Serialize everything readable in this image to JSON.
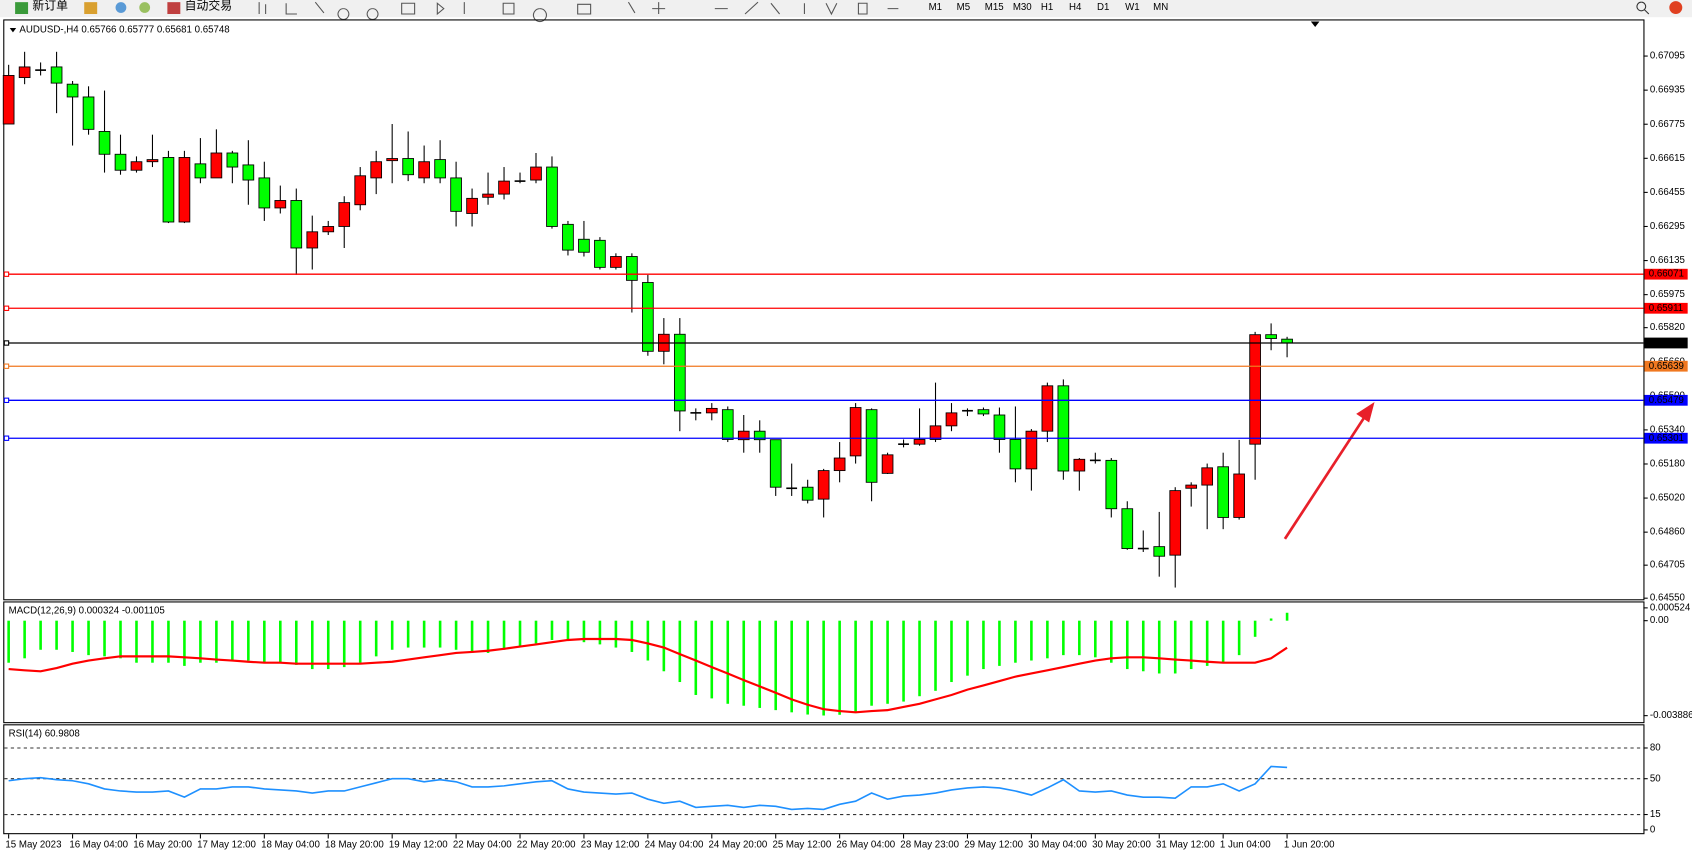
{
  "toolbar": {
    "new_order": "新订单",
    "auto_trading": "自动交易",
    "timeframes": [
      "M1",
      "M5",
      "M15",
      "M30",
      "H1",
      "H4",
      "D1",
      "W1",
      "MN"
    ]
  },
  "chart_data": [
    {
      "type": "candlestick",
      "title": "AUDUSD-,H4  0.65766 0.65777 0.65681 0.65748",
      "colors": {
        "up": "#ff0000",
        "down": "#00ff00"
      },
      "categories": [
        "15 May 2023",
        null,
        null,
        null,
        "16 May 04:00",
        null,
        null,
        null,
        "16 May 20:00",
        null,
        null,
        null,
        "17 May 12:00",
        null,
        null,
        null,
        "18 May 04:00",
        null,
        null,
        null,
        "18 May 20:00",
        null,
        null,
        null,
        "19 May 12:00",
        null,
        null,
        null,
        "22 May 04:00",
        null,
        null,
        null,
        "22 May 20:00",
        null,
        null,
        null,
        "23 May 12:00",
        null,
        null,
        null,
        "24 May 04:00",
        null,
        null,
        null,
        "24 May 20:00",
        null,
        null,
        null,
        "25 May 12:00",
        null,
        null,
        null,
        "26 May 04:00",
        null,
        null,
        null,
        "28 May 23:00",
        null,
        null,
        null,
        "29 May 12:00",
        null,
        null,
        null,
        "30 May 04:00",
        null,
        null,
        null,
        "30 May 20:00",
        null,
        null,
        null,
        "31 May 12:00",
        null,
        null,
        null,
        "1 Jun 04:00",
        null,
        null,
        null,
        "1 Jun 20:00"
      ],
      "ohlc": [
        [
          0.66776,
          0.67054,
          0.66776,
          0.67004
        ],
        [
          0.66994,
          0.67115,
          0.66963,
          0.67044
        ],
        [
          0.67029,
          0.67065,
          0.67004,
          0.67029
        ],
        [
          0.67044,
          0.67115,
          0.66827,
          0.66968
        ],
        [
          0.66963,
          0.66978,
          0.66675,
          0.66903
        ],
        [
          0.66903,
          0.66953,
          0.66726,
          0.66751
        ],
        [
          0.66741,
          0.66933,
          0.66548,
          0.66634
        ],
        [
          0.66634,
          0.66726,
          0.66538,
          0.66559
        ],
        [
          0.66559,
          0.66624,
          0.66548,
          0.66599
        ],
        [
          0.66599,
          0.66726,
          0.66574,
          0.66609
        ],
        [
          0.66619,
          0.6665,
          0.66311,
          0.66316
        ],
        [
          0.66316,
          0.6665,
          0.66311,
          0.66619
        ],
        [
          0.66589,
          0.6671,
          0.66498,
          0.66523
        ],
        [
          0.66523,
          0.66751,
          0.66523,
          0.6664
        ],
        [
          0.6664,
          0.6665,
          0.66498,
          0.66574
        ],
        [
          0.66584,
          0.667,
          0.66397,
          0.66513
        ],
        [
          0.66523,
          0.66599,
          0.66321,
          0.66382
        ],
        [
          0.66382,
          0.66487,
          0.66356,
          0.66417
        ],
        [
          0.66417,
          0.66473,
          0.66068,
          0.66194
        ],
        [
          0.66194,
          0.66346,
          0.66093,
          0.6627
        ],
        [
          0.6627,
          0.66321,
          0.66255,
          0.66295
        ],
        [
          0.66295,
          0.66437,
          0.66194,
          0.66407
        ],
        [
          0.66397,
          0.66574,
          0.66371,
          0.66533
        ],
        [
          0.66523,
          0.6665,
          0.66447,
          0.66599
        ],
        [
          0.66604,
          0.66776,
          0.66498,
          0.66614
        ],
        [
          0.66614,
          0.66741,
          0.66508,
          0.66538
        ],
        [
          0.66523,
          0.66675,
          0.66498,
          0.66599
        ],
        [
          0.66609,
          0.667,
          0.66498,
          0.66523
        ],
        [
          0.66523,
          0.66599,
          0.66295,
          0.66366
        ],
        [
          0.66356,
          0.66473,
          0.66295,
          0.66427
        ],
        [
          0.66432,
          0.66548,
          0.66397,
          0.66447
        ],
        [
          0.66447,
          0.66574,
          0.66422,
          0.66508
        ],
        [
          0.66508,
          0.66548,
          0.66498,
          0.66508
        ],
        [
          0.66513,
          0.6664,
          0.66498,
          0.66574
        ],
        [
          0.66574,
          0.66624,
          0.66285,
          0.66295
        ],
        [
          0.66305,
          0.66321,
          0.66159,
          0.66184
        ],
        [
          0.66235,
          0.66321,
          0.66154,
          0.66174
        ],
        [
          0.6623,
          0.66245,
          0.66093,
          0.66103
        ],
        [
          0.66103,
          0.66169,
          0.66093,
          0.66154
        ],
        [
          0.66154,
          0.66169,
          0.65891,
          0.66042
        ],
        [
          0.66032,
          0.66068,
          0.65688,
          0.65709
        ],
        [
          0.65709,
          0.65865,
          0.65648,
          0.65789
        ],
        [
          0.65789,
          0.65865,
          0.65334,
          0.65429
        ],
        [
          0.6542,
          0.65441,
          0.65385,
          0.6542
        ],
        [
          0.6542,
          0.65466,
          0.65385,
          0.65441
        ],
        [
          0.65435,
          0.6545,
          0.65283,
          0.65295
        ],
        [
          0.65294,
          0.6541,
          0.65233,
          0.65334
        ],
        [
          0.65334,
          0.65385,
          0.65233,
          0.65294
        ],
        [
          0.65294,
          0.65295,
          0.6503,
          0.65071
        ],
        [
          0.65066,
          0.65182,
          0.6503,
          0.65066
        ],
        [
          0.65071,
          0.65106,
          0.64995,
          0.6501
        ],
        [
          0.65015,
          0.65157,
          0.64929,
          0.65149
        ],
        [
          0.65149,
          0.65283,
          0.65094,
          0.65208
        ],
        [
          0.65218,
          0.65466,
          0.65182,
          0.65445
        ],
        [
          0.65435,
          0.65441,
          0.65005,
          0.65094
        ],
        [
          0.65136,
          0.65233,
          0.65133,
          0.65223
        ],
        [
          0.65273,
          0.65295,
          0.65258,
          0.65273
        ],
        [
          0.65273,
          0.65441,
          0.65266,
          0.65295
        ],
        [
          0.65295,
          0.65562,
          0.65283,
          0.65359
        ],
        [
          0.65359,
          0.65466,
          0.65334,
          0.6542
        ],
        [
          0.6543,
          0.65441,
          0.65405,
          0.6543
        ],
        [
          0.65435,
          0.65445,
          0.65405,
          0.65415
        ],
        [
          0.6541,
          0.65445,
          0.65233,
          0.65295
        ],
        [
          0.65295,
          0.6545,
          0.65094,
          0.65157
        ],
        [
          0.65157,
          0.65344,
          0.65055,
          0.65334
        ],
        [
          0.65334,
          0.65562,
          0.65283,
          0.65547
        ],
        [
          0.65547,
          0.65577,
          0.65106,
          0.65147
        ],
        [
          0.65147,
          0.65208,
          0.65055,
          0.65202
        ],
        [
          0.65197,
          0.65233,
          0.65182,
          0.65197
        ],
        [
          0.65197,
          0.65208,
          0.64929,
          0.6497
        ],
        [
          0.6497,
          0.65005,
          0.64777,
          0.64783
        ],
        [
          0.64783,
          0.64868,
          0.64767,
          0.64783
        ],
        [
          0.64792,
          0.64955,
          0.64651,
          0.64747
        ],
        [
          0.64752,
          0.65071,
          0.646,
          0.65055
        ],
        [
          0.65066,
          0.65094,
          0.6498,
          0.65081
        ],
        [
          0.65081,
          0.65182,
          0.64874,
          0.65162
        ],
        [
          0.65167,
          0.65233,
          0.64874,
          0.64929
        ],
        [
          0.64929,
          0.65293,
          0.64919,
          0.65133
        ],
        [
          0.65273,
          0.658,
          0.65106,
          0.65787
        ],
        [
          0.65787,
          0.6584,
          0.65714,
          0.65769
        ],
        [
          0.65766,
          0.65777,
          0.65681,
          0.65748
        ]
      ],
      "ylim": [
        0.64545,
        0.67257
      ],
      "yticks": [
        0.67095,
        0.66935,
        0.66775,
        0.66615,
        0.66455,
        0.66295,
        0.66135,
        0.65975,
        {
          "value": 0.6582,
          "label": "0.65820"
        },
        {
          "value": 0.6566,
          "label": "0.65660"
        },
        {
          "value": 0.655,
          "label": "0.65500"
        },
        {
          "value": 0.6534,
          "label": "0.65340"
        },
        {
          "value": 0.6518,
          "label": "0.65180"
        },
        {
          "value": 0.6502,
          "label": "0.65020"
        },
        {
          "value": 0.6486,
          "label": "0.64860"
        },
        0.64705,
        {
          "value": 0.6455,
          "label": "0.64550"
        }
      ],
      "levels": [
        {
          "value": 0.66071,
          "color": "#ff0000"
        },
        {
          "value": 0.65911,
          "color": "#ff0000"
        },
        {
          "value": 0.65748,
          "color": "#000000"
        },
        {
          "value": 0.65639,
          "color": "#f07820"
        },
        {
          "value": 0.65479,
          "color": "#0000ff"
        },
        {
          "value": 0.65301,
          "color": "#0000ff"
        }
      ]
    },
    {
      "type": "macd",
      "title": "MACD(12,26,9) 0.000324 -0.001105",
      "series": [
        {
          "color": "#00ff00",
          "values": [
            -0.00172,
            -0.00154,
            -0.00119,
            -0.00119,
            -0.00128,
            -0.00141,
            -0.00146,
            -0.00154,
            -0.00172,
            -0.00172,
            -0.00172,
            -0.00185,
            -0.00172,
            -0.00172,
            -0.00163,
            -0.00163,
            -0.00172,
            -0.00172,
            -0.00181,
            -0.00198,
            -0.00198,
            -0.0019,
            -0.00172,
            -0.00146,
            -0.00119,
            -0.0011,
            -0.0011,
            -0.0011,
            -0.00119,
            -0.00132,
            -0.00132,
            -0.00119,
            -0.00106,
            -0.00093,
            -0.00079,
            -0.00075,
            -0.00088,
            -0.00097,
            -0.0011,
            -0.00128,
            -0.00163,
            -0.00207,
            -0.00251,
            -0.00304,
            -0.00318,
            -0.0034,
            -0.00348,
            -0.00357,
            -0.00366,
            -0.00375,
            -0.00384,
            -0.00388,
            -0.00385,
            -0.00375,
            -0.00348,
            -0.0034,
            -0.00331,
            -0.00309,
            -0.00287,
            -0.00251,
            -0.00225,
            -0.00198,
            -0.00185,
            -0.00172,
            -0.00163,
            -0.00154,
            -0.00141,
            -0.00141,
            -0.0015,
            -0.00172,
            -0.00198,
            -0.00207,
            -0.00216,
            -0.00216,
            -0.00198,
            -0.00185,
            -0.00172,
            -0.00141,
            -0.00066,
            9e-05,
            0.000324
          ]
        },
        {
          "color": "#ff0000",
          "values": [
            -0.00198,
            -0.00203,
            -0.00207,
            -0.00194,
            -0.00176,
            -0.00163,
            -0.00154,
            -0.00146,
            -0.00146,
            -0.00146,
            -0.00146,
            -0.0015,
            -0.00154,
            -0.00159,
            -0.00163,
            -0.00168,
            -0.00172,
            -0.00172,
            -0.00176,
            -0.00176,
            -0.00176,
            -0.00176,
            -0.00176,
            -0.00172,
            -0.00168,
            -0.00159,
            -0.0015,
            -0.00141,
            -0.00132,
            -0.00128,
            -0.00123,
            -0.00115,
            -0.00106,
            -0.00097,
            -0.00088,
            -0.00079,
            -0.00075,
            -0.00075,
            -0.00075,
            -0.00079,
            -0.00093,
            -0.0011,
            -0.00137,
            -0.00163,
            -0.0019,
            -0.00216,
            -0.00243,
            -0.00269,
            -0.00295,
            -0.00322,
            -0.00344,
            -0.00362,
            -0.0037,
            -0.00375,
            -0.0037,
            -0.00366,
            -0.00353,
            -0.0034,
            -0.00322,
            -0.00304,
            -0.00282,
            -0.00265,
            -0.00247,
            -0.00229,
            -0.00216,
            -0.00203,
            -0.0019,
            -0.00176,
            -0.00163,
            -0.00154,
            -0.0015,
            -0.0015,
            -0.00154,
            -0.00159,
            -0.00163,
            -0.00168,
            -0.00172,
            -0.00172,
            -0.00172,
            -0.00154,
            -0.001105
          ]
        }
      ],
      "ylim": [
        -0.003886,
        0.000524
      ],
      "yticks": [
        0.000524,
        {
          "value": 0,
          "label": "0.00"
        },
        -0.003886
      ]
    },
    {
      "type": "line",
      "title": "RSI(14) 60.9808",
      "series": [
        {
          "color": "#1e90ff",
          "values": [
            48,
            50,
            51,
            49,
            48,
            45,
            40,
            38,
            37,
            37,
            38,
            32,
            40,
            40,
            42,
            42,
            40,
            39,
            38,
            36,
            38,
            38,
            42,
            46,
            50,
            50,
            47,
            49,
            47,
            42,
            42,
            43,
            45,
            47,
            48,
            40,
            37,
            36,
            35,
            36,
            30,
            26,
            28,
            22,
            23,
            24,
            22,
            24,
            23,
            20,
            21,
            20,
            25,
            28,
            36,
            30,
            33,
            34,
            36,
            39,
            41,
            42,
            41,
            38,
            34,
            41,
            49,
            38,
            37,
            38,
            34,
            32,
            32,
            31,
            42,
            42,
            45,
            38,
            45,
            62,
            60.9808
          ]
        }
      ],
      "ylim": [
        0,
        100
      ],
      "yticks": [
        80,
        50,
        15,
        0
      ],
      "levels": [
        80,
        50,
        15
      ]
    }
  ]
}
